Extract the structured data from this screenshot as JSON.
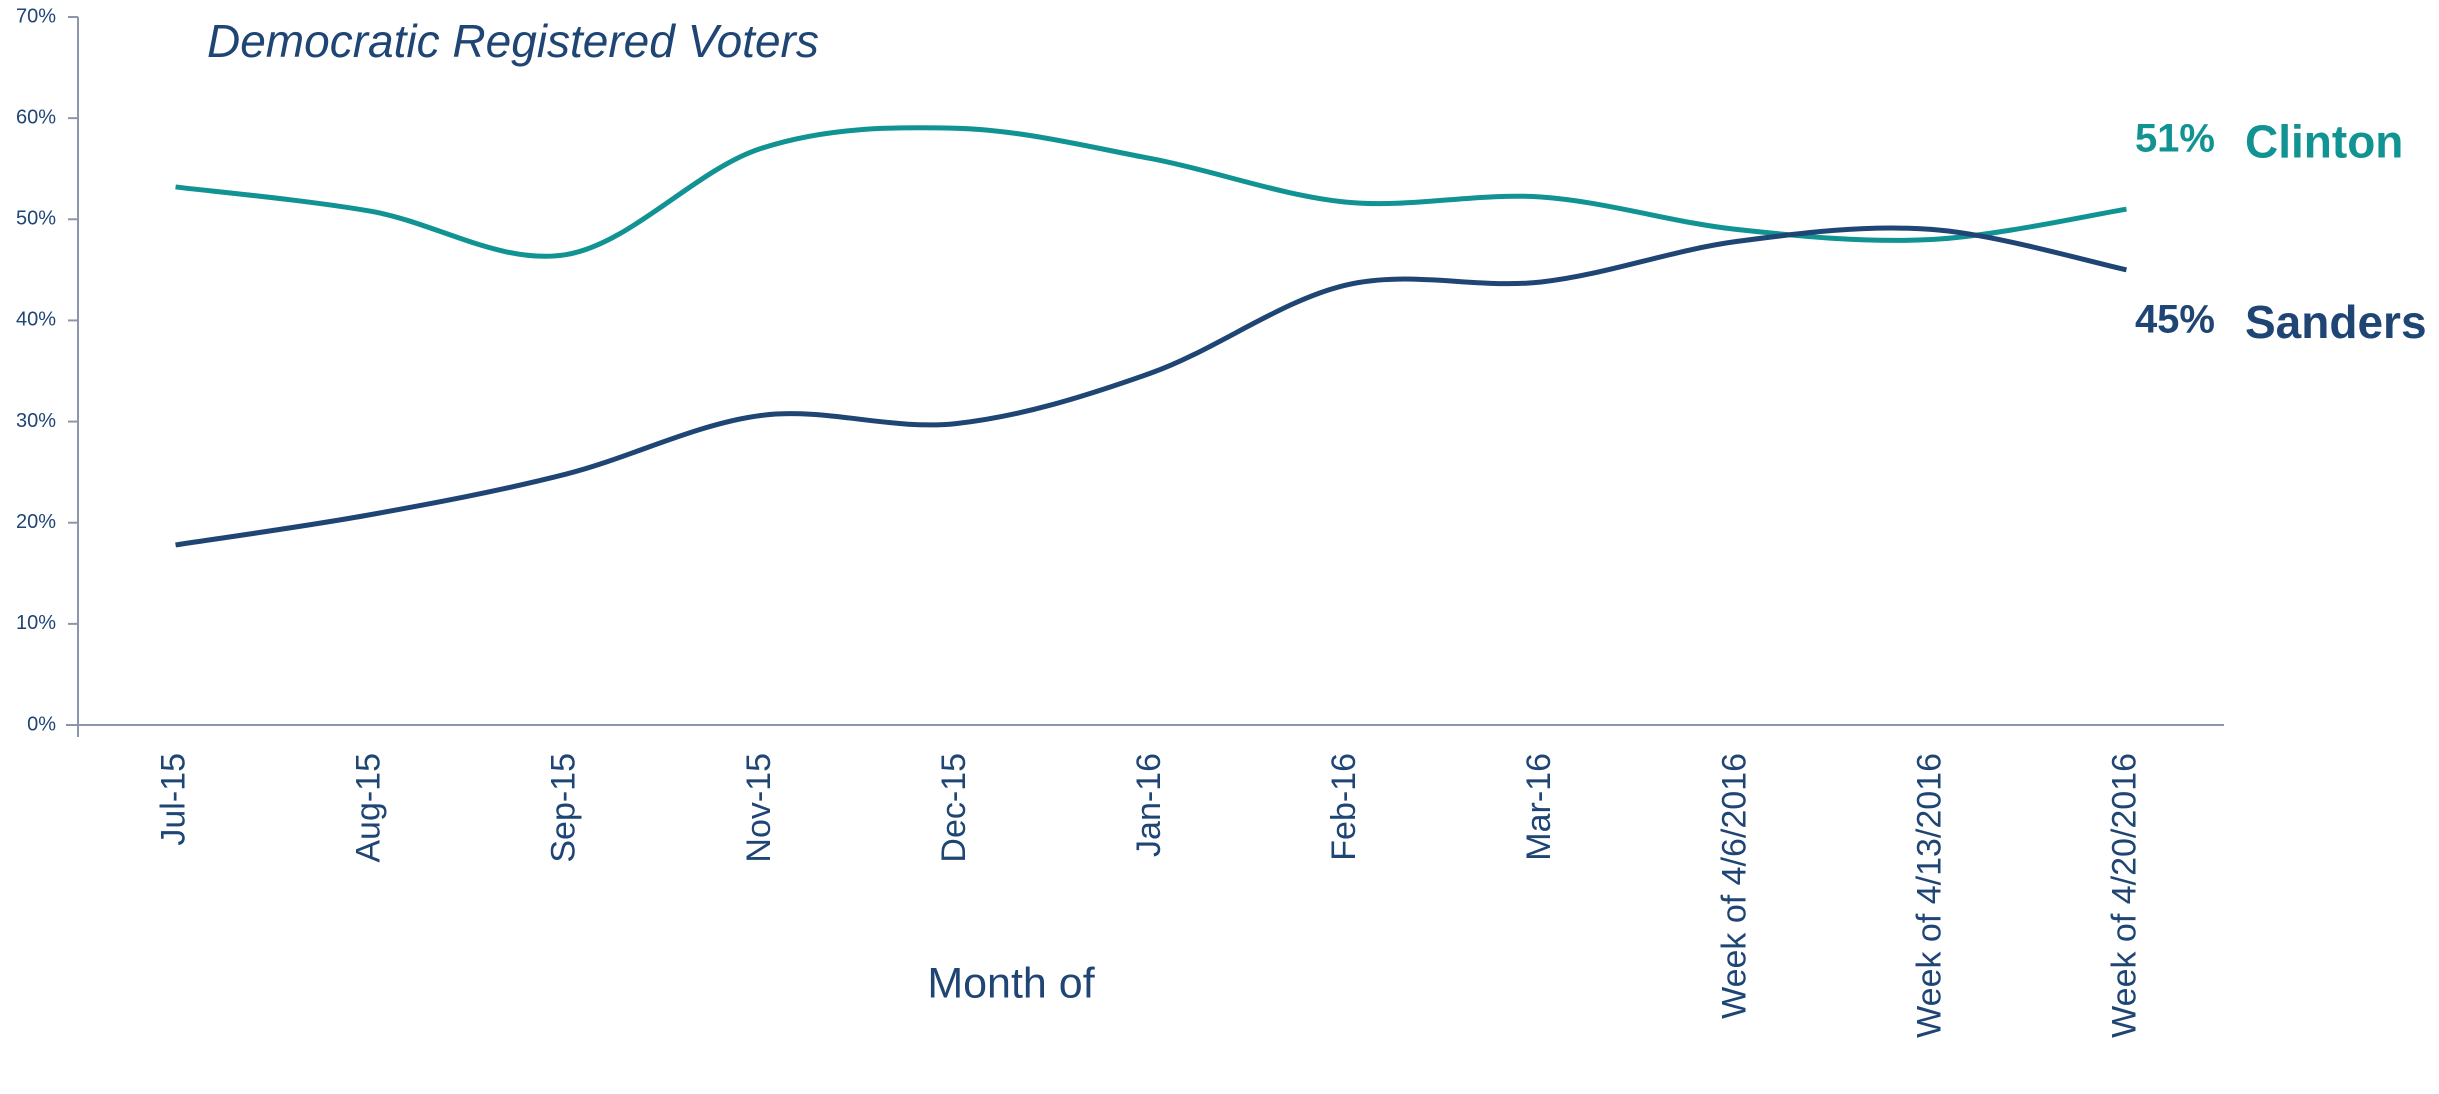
{
  "chart_data": {
    "type": "line",
    "title": "Democratic Registered Voters",
    "x_label": "Month of",
    "categories": [
      "Jul-15",
      "Aug-15",
      "Sep-15",
      "Nov-15",
      "Dec-15",
      "Jan-16",
      "Feb-16",
      "Mar-16",
      "Week of 4/6/2016",
      "Week of 4/13/2016",
      "Week of 4/20/2016"
    ],
    "series": [
      {
        "name": "Clinton",
        "color": "#129393",
        "values": [
          53.2,
          50.8,
          46.5,
          57,
          59,
          56,
          51.7,
          52.2,
          49,
          48,
          51
        ],
        "value_labels": [
          null,
          null,
          null,
          null,
          null,
          null,
          null,
          null,
          null,
          null,
          "51%"
        ]
      },
      {
        "name": "Sanders",
        "color": "#1f4575",
        "values": [
          17.8,
          20.8,
          24.8,
          30.6,
          29.8,
          34.8,
          43.5,
          43.8,
          47.8,
          49,
          45
        ],
        "value_labels": [
          null,
          null,
          null,
          null,
          null,
          null,
          null,
          null,
          null,
          null,
          "45%"
        ]
      }
    ],
    "ylim": [
      0,
      70
    ],
    "yticks": [
      {
        "value": 0,
        "label": "0%"
      },
      {
        "value": 10,
        "label": "10%"
      },
      {
        "value": 20,
        "label": "20%"
      },
      {
        "value": 30,
        "label": "30%"
      },
      {
        "value": 40,
        "label": "40%"
      },
      {
        "value": 50,
        "label": "50%"
      },
      {
        "value": 60,
        "label": "60%"
      },
      {
        "value": 70,
        "label": "70%"
      }
    ],
    "grid": false
  }
}
